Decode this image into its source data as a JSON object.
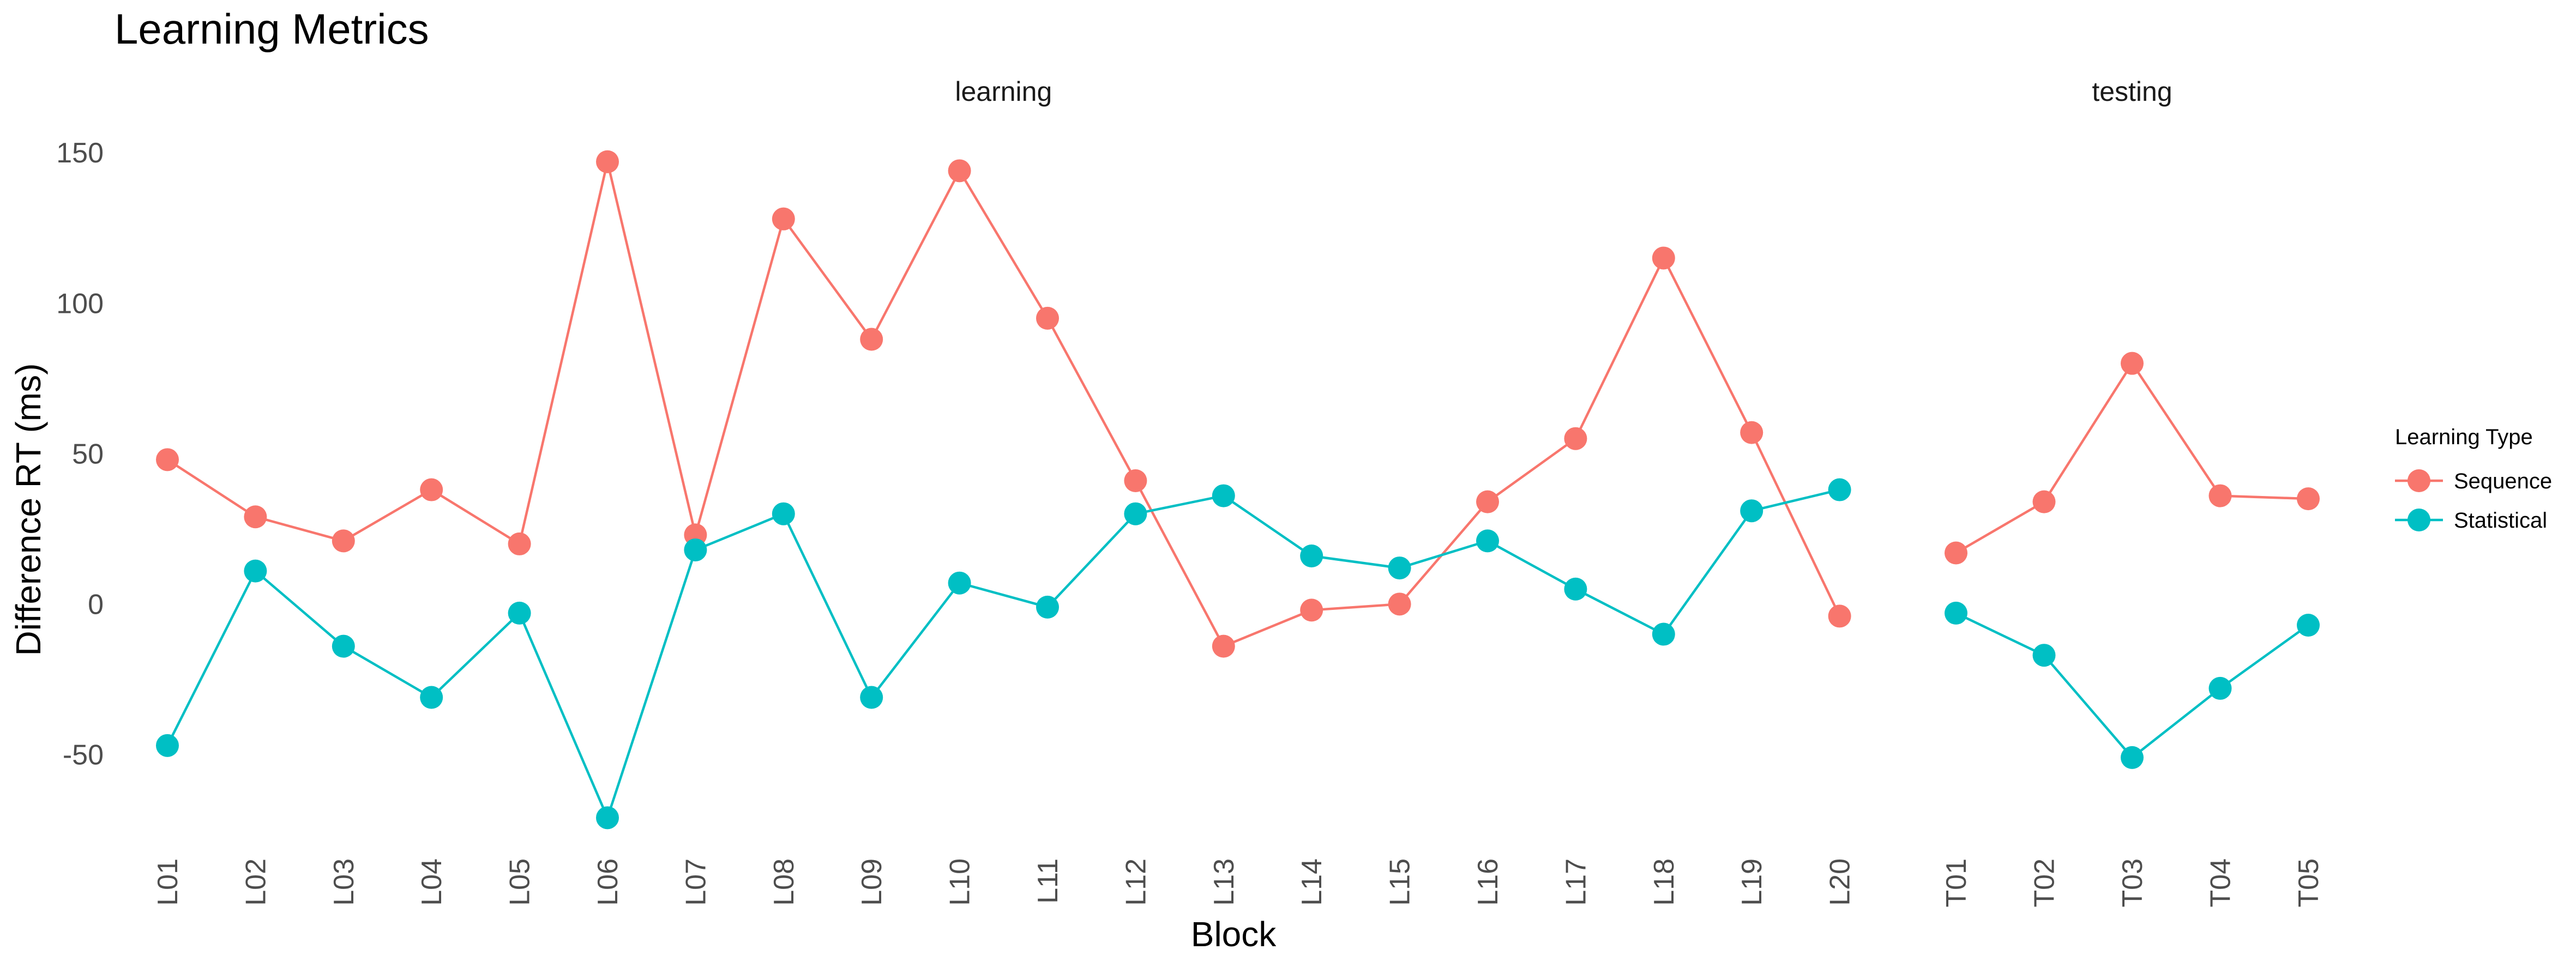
{
  "chart_data": {
    "type": "line",
    "title": "Learning Metrics",
    "xlabel": "Block",
    "ylabel": "Difference RT (ms)",
    "ylim": [
      -80,
      160
    ],
    "yticks": [
      -50,
      0,
      50,
      100,
      150
    ],
    "grid": false,
    "legend": {
      "title": "Learning Type",
      "placement": "right"
    },
    "series_meta": [
      {
        "name": "Sequence",
        "color": "#F8766D"
      },
      {
        "name": "Statistical",
        "color": "#00BFC4"
      }
    ],
    "panels": [
      {
        "name": "learning",
        "categories": [
          "L01",
          "L02",
          "L03",
          "L04",
          "L05",
          "L06",
          "L07",
          "L08",
          "L09",
          "L10",
          "L11",
          "L12",
          "L13",
          "L14",
          "L15",
          "L16",
          "L17",
          "L18",
          "L19",
          "L20"
        ],
        "series": [
          {
            "name": "Sequence",
            "values": [
              48,
              29,
              21,
              38,
              20,
              147,
              23,
              128,
              88,
              144,
              95,
              41,
              -14,
              -2,
              0,
              34,
              55,
              115,
              57,
              -4
            ]
          },
          {
            "name": "Statistical",
            "values": [
              -47,
              11,
              -14,
              -31,
              -3,
              -71,
              18,
              30,
              -31,
              7,
              -1,
              30,
              36,
              16,
              12,
              21,
              5,
              -10,
              31,
              38
            ]
          }
        ]
      },
      {
        "name": "testing",
        "categories": [
          "T01",
          "T02",
          "T03",
          "T04",
          "T05"
        ],
        "series": [
          {
            "name": "Sequence",
            "values": [
              17,
              34,
              80,
              36,
              35
            ]
          },
          {
            "name": "Statistical",
            "values": [
              -3,
              -17,
              -51,
              -28,
              -7
            ]
          }
        ]
      }
    ]
  }
}
